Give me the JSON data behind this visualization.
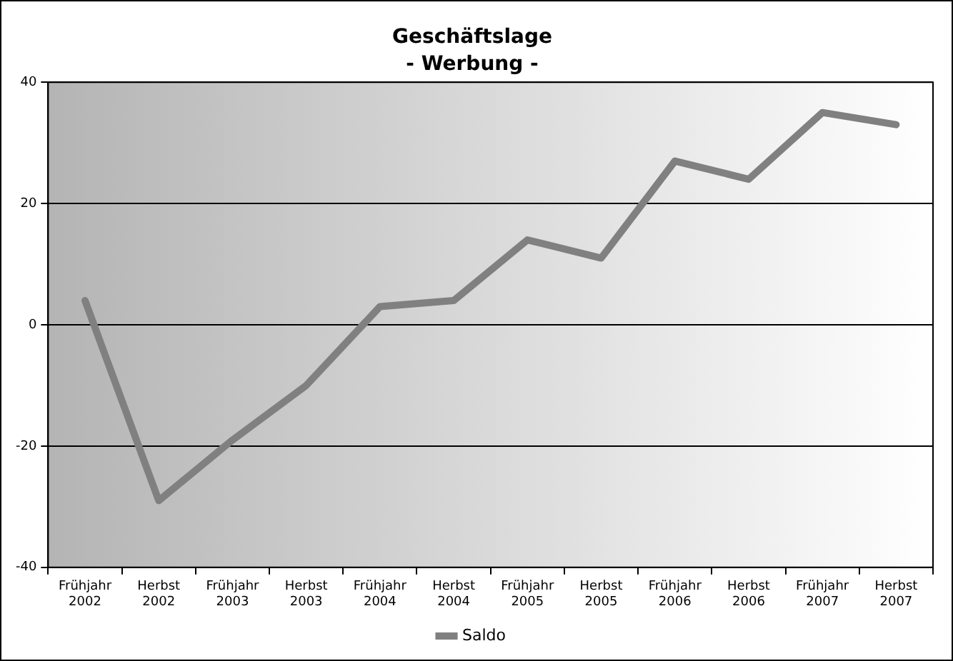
{
  "chart_data": {
    "type": "line",
    "title": "Geschäftslage",
    "subtitle": "- Werbung -",
    "categories": [
      "Frühjahr 2002",
      "Herbst 2002",
      "Frühjahr 2003",
      "Herbst 2003",
      "Frühjahr 2004",
      "Herbst 2004",
      "Frühjahr 2005",
      "Herbst 2005",
      "Frühjahr 2006",
      "Herbst 2006",
      "Frühjahr 2007",
      "Herbst 2007"
    ],
    "series": [
      {
        "name": "Saldo",
        "color": "#808080",
        "values": [
          4,
          -29,
          -19,
          -10,
          3,
          4,
          14,
          11,
          27,
          24,
          35,
          33
        ]
      }
    ],
    "ylim": [
      -40,
      40
    ],
    "yticks": [
      -40,
      -20,
      0,
      20,
      40
    ],
    "grid": "y",
    "legend": "bottom",
    "marker": "none",
    "line_style": "solid"
  }
}
